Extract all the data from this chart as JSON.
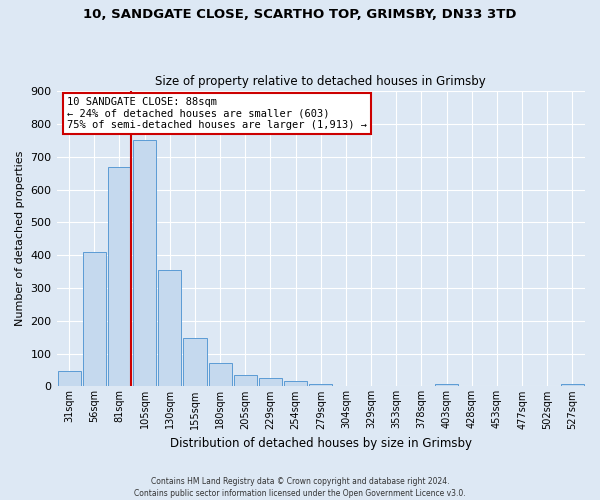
{
  "title1": "10, SANDGATE CLOSE, SCARTHO TOP, GRIMSBY, DN33 3TD",
  "title2": "Size of property relative to detached houses in Grimsby",
  "xlabel": "Distribution of detached houses by size in Grimsby",
  "ylabel": "Number of detached properties",
  "bar_labels": [
    "31sqm",
    "56sqm",
    "81sqm",
    "105sqm",
    "130sqm",
    "155sqm",
    "180sqm",
    "205sqm",
    "229sqm",
    "254sqm",
    "279sqm",
    "304sqm",
    "329sqm",
    "353sqm",
    "378sqm",
    "403sqm",
    "428sqm",
    "453sqm",
    "477sqm",
    "502sqm",
    "527sqm"
  ],
  "bar_values": [
    47,
    410,
    670,
    750,
    355,
    148,
    70,
    35,
    27,
    15,
    8,
    0,
    0,
    0,
    0,
    7,
    0,
    0,
    0,
    0,
    8
  ],
  "bar_color": "#c5d9ee",
  "bar_edge_color": "#5b9bd5",
  "vline_position": 2.45,
  "vline_color": "#cc0000",
  "ylim": [
    0,
    900
  ],
  "yticks": [
    0,
    100,
    200,
    300,
    400,
    500,
    600,
    700,
    800,
    900
  ],
  "annotation_title": "10 SANDGATE CLOSE: 88sqm",
  "annotation_line1": "← 24% of detached houses are smaller (603)",
  "annotation_line2": "75% of semi-detached houses are larger (1,913) →",
  "annotation_box_color": "#ffffff",
  "annotation_border_color": "#cc0000",
  "footer1": "Contains HM Land Registry data © Crown copyright and database right 2024.",
  "footer2": "Contains public sector information licensed under the Open Government Licence v3.0.",
  "bg_color": "#dde8f4",
  "plot_bg_color": "#dde8f4",
  "grid_color": "#ffffff"
}
